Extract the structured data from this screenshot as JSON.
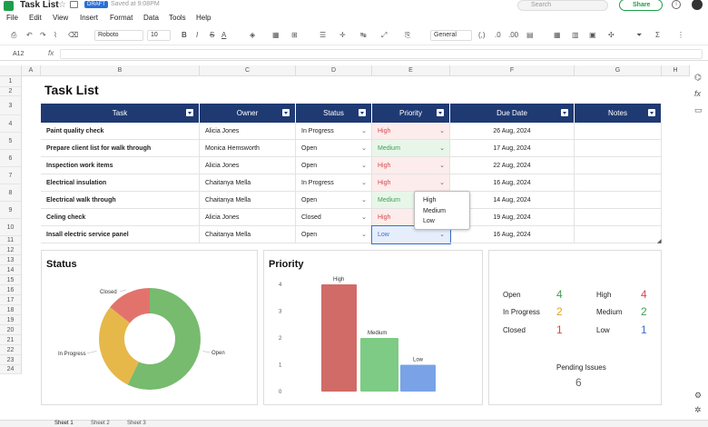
{
  "window": {
    "title": "Task List",
    "draft_badge": "DRAFT",
    "saved_status": "Saved at 9:08PM",
    "search_placeholder": "Search",
    "share_label": "Share"
  },
  "menu": [
    "File",
    "Edit",
    "View",
    "Insert",
    "Format",
    "Data",
    "Tools",
    "Help"
  ],
  "toolbar": {
    "font": "Roboto",
    "font_size": "10",
    "number_format": "General"
  },
  "formula": {
    "cell_ref": "A12",
    "fx": "fx"
  },
  "columns": [
    "A",
    "B",
    "C",
    "D",
    "E",
    "F",
    "G",
    "H"
  ],
  "rows": [
    "1",
    "2",
    "3",
    "4",
    "5",
    "6",
    "7",
    "8",
    "9",
    "10",
    "11",
    "12",
    "13",
    "14",
    "15",
    "16",
    "17",
    "18",
    "19",
    "20",
    "21",
    "22",
    "23",
    "24"
  ],
  "sheet_title": "Task List",
  "table": {
    "headers": [
      "Task",
      "Owner",
      "Status",
      "Priority",
      "Due Date",
      "Notes"
    ],
    "rows": [
      {
        "task": "Paint quality check",
        "owner": "Alicia Jones",
        "status": "In Progress",
        "priority": "High",
        "due": "26 Aug, 2024"
      },
      {
        "task": "Prepare client list for walk through",
        "owner": "Monica Hemsworth",
        "status": "Open",
        "priority": "Medium",
        "due": "17 Aug, 2024"
      },
      {
        "task": "Inspection work items",
        "owner": "Alicia Jones",
        "status": "Open",
        "priority": "High",
        "due": "22 Aug, 2024"
      },
      {
        "task": "Electrical insulation",
        "owner": "Chaitanya Mella",
        "status": "In Progress",
        "priority": "High",
        "due": "16 Aug, 2024"
      },
      {
        "task": "Electrical walk through",
        "owner": "Chaitanya Mella",
        "status": "Open",
        "priority": "Medium",
        "due": "14 Aug, 2024"
      },
      {
        "task": "Celing check",
        "owner": "Alicia Jones",
        "status": "Closed",
        "priority": "High",
        "due": "19 Aug, 2024"
      },
      {
        "task": "Insall electric service panel",
        "owner": "Chaitanya Mella",
        "status": "Open",
        "priority": "Low",
        "due": "16 Aug, 2024"
      }
    ]
  },
  "priority_dropdown": [
    "High",
    "Medium",
    "Low"
  ],
  "chart_data": [
    {
      "type": "pie",
      "title": "Status",
      "categories": [
        "Open",
        "In Progress",
        "Closed"
      ],
      "values": [
        4,
        2,
        1
      ],
      "colors": [
        "#77bb6e",
        "#e6b84a",
        "#e2736c"
      ]
    },
    {
      "type": "bar",
      "title": "Priority",
      "categories": [
        "High",
        "Medium",
        "Low"
      ],
      "values": [
        4,
        2,
        1
      ],
      "colors": [
        "#d16b67",
        "#7dcb84",
        "#79a3e6"
      ],
      "yticks": [
        "4",
        "3",
        "2",
        "1",
        "0"
      ],
      "ylim": [
        0,
        4
      ]
    }
  ],
  "summary": {
    "status": [
      {
        "label": "Open",
        "value": "4",
        "color": "#3f9f4f"
      },
      {
        "label": "In Progress",
        "value": "2",
        "color": "#e3a21a"
      },
      {
        "label": "Closed",
        "value": "1",
        "color": "#d24b4b"
      }
    ],
    "priority": [
      {
        "label": "High",
        "value": "4",
        "color": "#d24b4b"
      },
      {
        "label": "Medium",
        "value": "2",
        "color": "#3f9f4f"
      },
      {
        "label": "Low",
        "value": "1",
        "color": "#3b6fd1"
      }
    ],
    "pending_label": "Pending Issues",
    "pending_value": "6"
  },
  "sheets": [
    "Sheet 1",
    "Sheet 2",
    "Sheet 3"
  ]
}
